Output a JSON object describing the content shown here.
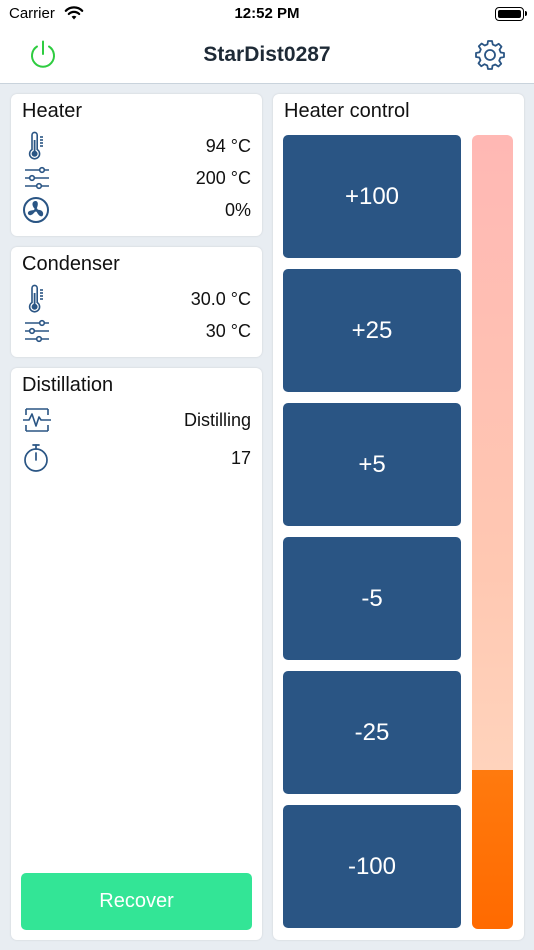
{
  "status_bar": {
    "carrier": "Carrier",
    "time": "12:52 PM"
  },
  "nav": {
    "title": "StarDist0287",
    "power_icon": "power-icon",
    "settings_icon": "gear-icon",
    "power_color": "#2ecc40",
    "icon_color": "#2a5584"
  },
  "heater": {
    "title": "Heater",
    "temperature": "94 °C",
    "setpoint": "200 °C",
    "fan": "0%"
  },
  "condenser": {
    "title": "Condenser",
    "temperature": "30.0 °C",
    "setpoint": "30 °C"
  },
  "distillation": {
    "title": "Distillation",
    "status": "Distilling",
    "timer": "17",
    "recover_label": "Recover",
    "recover_color": "#33e596"
  },
  "heater_control": {
    "title": "Heater control",
    "buttons": [
      "+100",
      "+25",
      "+5",
      "-5",
      "-25",
      "-100"
    ],
    "power_level_fraction": 0.2,
    "button_color": "#2a5584",
    "level_color": "#ff6a00"
  }
}
